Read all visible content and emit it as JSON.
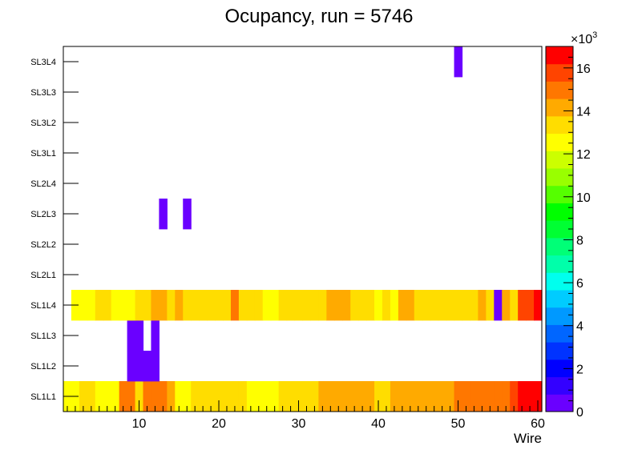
{
  "chart_data": {
    "type": "heatmap",
    "title": "Ocupancy, run = 5746",
    "xlabel": "Wire",
    "ylabel": "",
    "xlim": [
      0.5,
      60.5
    ],
    "x_ticks": [
      10,
      20,
      30,
      40,
      50,
      60
    ],
    "y_categories": [
      "SL1L1",
      "SL1L2",
      "SL1L3",
      "SL1L4",
      "SL2L1",
      "SL2L2",
      "SL2L3",
      "SL2L4",
      "SL3L1",
      "SL3L2",
      "SL3L3",
      "SL3L4"
    ],
    "z_range": [
      0,
      17000
    ],
    "z_exponent_label": "×10",
    "z_exponent_power": "3",
    "z_ticks": [
      {
        "value": 0,
        "label": "0"
      },
      {
        "value": 2000,
        "label": "2"
      },
      {
        "value": 4000,
        "label": "4"
      },
      {
        "value": 6000,
        "label": "6"
      },
      {
        "value": 8000,
        "label": "8"
      },
      {
        "value": 10000,
        "label": "10"
      },
      {
        "value": 12000,
        "label": "12"
      },
      {
        "value": 14000,
        "label": "14"
      },
      {
        "value": 16000,
        "label": "16"
      }
    ],
    "palette": [
      "#6a00ff",
      "#3300ff",
      "#0000ff",
      "#0033ff",
      "#0066ff",
      "#0099ff",
      "#00ccff",
      "#00ffee",
      "#00ffaa",
      "#00ff77",
      "#00ff33",
      "#00ff00",
      "#55ff00",
      "#99ff00",
      "#ccff00",
      "#ffff00",
      "#ffdd00",
      "#ffaa00",
      "#ff7700",
      "#ff4400",
      "#ff0000"
    ],
    "rows": [
      {
        "layer": "SL1L1",
        "values": [
          12300,
          12500,
          13400,
          13400,
          12800,
          12700,
          12800,
          14600,
          15100,
          13000,
          14600,
          14600,
          14600,
          13800,
          12200,
          12700,
          13600,
          13600,
          13400,
          13400,
          13400,
          13400,
          13400,
          12900,
          12900,
          12900,
          12900,
          13200,
          13200,
          13200,
          13200,
          13100,
          14200,
          14200,
          14200,
          14200,
          14200,
          14200,
          14200,
          13600,
          13000,
          14200,
          13800,
          14400,
          14200,
          14200,
          14200,
          14200,
          14200,
          14700,
          14700,
          14700,
          14700,
          14700,
          14700,
          14700,
          15400,
          16500,
          16500,
          16500
        ]
      },
      {
        "layer": "SL1L2",
        "values": [
          0,
          0,
          0,
          0,
          0,
          0,
          0,
          0,
          700,
          700,
          700,
          700,
          0,
          0,
          0,
          0,
          0,
          0,
          0,
          0,
          0,
          0,
          0,
          0,
          0,
          0,
          0,
          0,
          0,
          0,
          0,
          0,
          0,
          0,
          0,
          0,
          0,
          0,
          0,
          0,
          0,
          0,
          0,
          0,
          0,
          0,
          0,
          0,
          0,
          0,
          0,
          0,
          0,
          0,
          0,
          0,
          0,
          0,
          0,
          0
        ]
      },
      {
        "layer": "SL1L3",
        "values": [
          0,
          0,
          0,
          0,
          0,
          0,
          0,
          0,
          700,
          700,
          0,
          700,
          0,
          0,
          0,
          0,
          0,
          0,
          0,
          0,
          0,
          0,
          0,
          0,
          0,
          0,
          0,
          0,
          0,
          0,
          0,
          0,
          0,
          0,
          0,
          0,
          0,
          0,
          0,
          0,
          0,
          0,
          0,
          0,
          0,
          0,
          0,
          0,
          0,
          0,
          0,
          0,
          0,
          0,
          0,
          0,
          0,
          0,
          0,
          0
        ]
      },
      {
        "layer": "SL1L4",
        "values": [
          0,
          12200,
          12700,
          12700,
          13200,
          13200,
          12400,
          12400,
          12400,
          13000,
          13200,
          14400,
          14400,
          13600,
          14500,
          13200,
          13500,
          13300,
          13300,
          13300,
          13300,
          14700,
          13300,
          13300,
          13300,
          12800,
          12800,
          13600,
          13400,
          13400,
          13400,
          13400,
          13400,
          14500,
          14500,
          14500,
          13200,
          13200,
          13200,
          12800,
          13100,
          12900,
          14500,
          14500,
          13400,
          13400,
          13400,
          13400,
          13400,
          13400,
          13400,
          13400,
          14200,
          13400,
          700,
          14200,
          13600,
          15500,
          15500,
          16300
        ]
      },
      {
        "layer": "SL2L1",
        "values": [
          0,
          0,
          0,
          0,
          0,
          0,
          0,
          0,
          0,
          0,
          0,
          0,
          0,
          0,
          0,
          0,
          0,
          0,
          0,
          0,
          0,
          0,
          0,
          0,
          0,
          0,
          0,
          0,
          0,
          0,
          0,
          0,
          0,
          0,
          0,
          0,
          0,
          0,
          0,
          0,
          0,
          0,
          0,
          0,
          0,
          0,
          0,
          0,
          0,
          0,
          0,
          0,
          0,
          0,
          0,
          0,
          0,
          0,
          0,
          0
        ]
      },
      {
        "layer": "SL2L2",
        "values": [
          0,
          0,
          0,
          0,
          0,
          0,
          0,
          0,
          0,
          0,
          0,
          0,
          0,
          0,
          0,
          0,
          0,
          0,
          0,
          0,
          0,
          0,
          0,
          0,
          0,
          0,
          0,
          0,
          0,
          0,
          0,
          0,
          0,
          0,
          0,
          0,
          0,
          0,
          0,
          0,
          0,
          0,
          0,
          0,
          0,
          0,
          0,
          0,
          0,
          0,
          0,
          0,
          0,
          0,
          0,
          0,
          0,
          0,
          0,
          0
        ]
      },
      {
        "layer": "SL2L3",
        "values": [
          0,
          0,
          0,
          0,
          0,
          0,
          0,
          0,
          0,
          0,
          0,
          0,
          700,
          0,
          0,
          700,
          0,
          0,
          0,
          0,
          0,
          0,
          0,
          0,
          0,
          0,
          0,
          0,
          0,
          0,
          0,
          0,
          0,
          0,
          0,
          0,
          0,
          0,
          0,
          0,
          0,
          0,
          0,
          0,
          0,
          0,
          0,
          0,
          0,
          0,
          0,
          0,
          0,
          0,
          0,
          0,
          0,
          0,
          0,
          0
        ]
      },
      {
        "layer": "SL2L4",
        "values": [
          0,
          0,
          0,
          0,
          0,
          0,
          0,
          0,
          0,
          0,
          0,
          0,
          0,
          0,
          0,
          0,
          0,
          0,
          0,
          0,
          0,
          0,
          0,
          0,
          0,
          0,
          0,
          0,
          0,
          0,
          0,
          0,
          0,
          0,
          0,
          0,
          0,
          0,
          0,
          0,
          0,
          0,
          0,
          0,
          0,
          0,
          0,
          0,
          0,
          0,
          0,
          0,
          0,
          0,
          0,
          0,
          0,
          0,
          0,
          0
        ]
      },
      {
        "layer": "SL3L1",
        "values": [
          0,
          0,
          0,
          0,
          0,
          0,
          0,
          0,
          0,
          0,
          0,
          0,
          0,
          0,
          0,
          0,
          0,
          0,
          0,
          0,
          0,
          0,
          0,
          0,
          0,
          0,
          0,
          0,
          0,
          0,
          0,
          0,
          0,
          0,
          0,
          0,
          0,
          0,
          0,
          0,
          0,
          0,
          0,
          0,
          0,
          0,
          0,
          0,
          0,
          0,
          0,
          0,
          0,
          0,
          0,
          0,
          0,
          0,
          0,
          0
        ]
      },
      {
        "layer": "SL3L2",
        "values": [
          0,
          0,
          0,
          0,
          0,
          0,
          0,
          0,
          0,
          0,
          0,
          0,
          0,
          0,
          0,
          0,
          0,
          0,
          0,
          0,
          0,
          0,
          0,
          0,
          0,
          0,
          0,
          0,
          0,
          0,
          0,
          0,
          0,
          0,
          0,
          0,
          0,
          0,
          0,
          0,
          0,
          0,
          0,
          0,
          0,
          0,
          0,
          0,
          0,
          0,
          0,
          0,
          0,
          0,
          0,
          0,
          0,
          0,
          0,
          0
        ]
      },
      {
        "layer": "SL3L3",
        "values": [
          0,
          0,
          0,
          0,
          0,
          0,
          0,
          0,
          0,
          0,
          0,
          0,
          0,
          0,
          0,
          0,
          0,
          0,
          0,
          0,
          0,
          0,
          0,
          0,
          0,
          0,
          0,
          0,
          0,
          0,
          0,
          0,
          0,
          0,
          0,
          0,
          0,
          0,
          0,
          0,
          0,
          0,
          0,
          0,
          0,
          0,
          0,
          0,
          0,
          0,
          0,
          0,
          0,
          0,
          0,
          0,
          0,
          0,
          0,
          0
        ]
      },
      {
        "layer": "SL3L4",
        "values": [
          0,
          0,
          0,
          0,
          0,
          0,
          0,
          0,
          0,
          0,
          0,
          0,
          0,
          0,
          0,
          0,
          0,
          0,
          0,
          0,
          0,
          0,
          0,
          0,
          0,
          0,
          0,
          0,
          0,
          0,
          0,
          0,
          0,
          0,
          0,
          0,
          0,
          0,
          0,
          0,
          0,
          0,
          0,
          0,
          0,
          0,
          0,
          0,
          0,
          700,
          0,
          0,
          0,
          0,
          0,
          0,
          0,
          0,
          0,
          0
        ]
      }
    ]
  }
}
